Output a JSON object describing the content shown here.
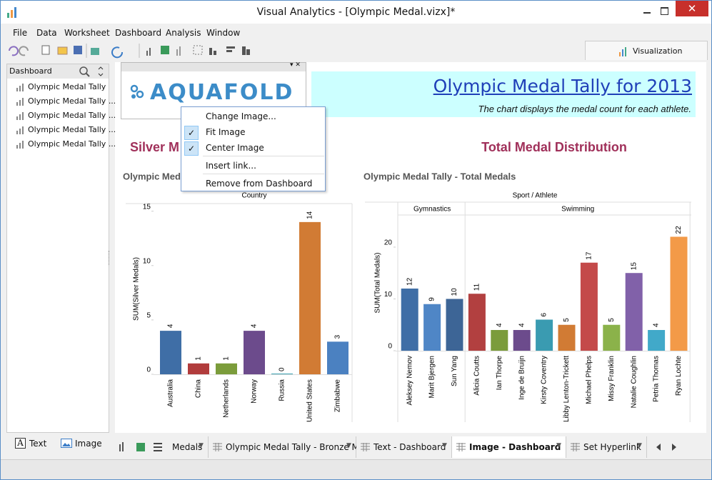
{
  "window": {
    "title": "Visual Analytics - [Olympic Medal.vizx]*"
  },
  "menu": [
    "File",
    "Data",
    "Worksheet",
    "Dashboard",
    "Analysis",
    "Window"
  ],
  "toolbar": {
    "tab": "Visualization"
  },
  "sidebar": {
    "title": "Dashboard",
    "items": [
      "Olympic Medal Tally",
      "Olympic Medal Tally ...",
      "Olympic Medal Tally ...",
      "Olympic Medal Tally ...",
      "Olympic Medal Tally ..."
    ],
    "tools": [
      "Text",
      "Image"
    ]
  },
  "logo": "AQUAFOLD",
  "header": {
    "title": "Olympic Medal Tally for 2013",
    "subtitle": "The chart displays the medal count for each athlete."
  },
  "context_menu": [
    {
      "label": "Change Image..."
    },
    {
      "label": "Fit Image",
      "checked": true
    },
    {
      "label": "Center Image",
      "checked": true
    },
    {
      "label": "Insert link..."
    },
    {
      "label": "Remove from Dashboard"
    }
  ],
  "chart_data": [
    {
      "type": "bar",
      "title": "Silver M",
      "subtitle": "Olympic Medal",
      "x_header": "Country",
      "y_label": "SUM(Silver Medals)",
      "categories": [
        "Australia",
        "China",
        "Netherlands",
        "Norway",
        "Russia",
        "United States",
        "Zimbabwe"
      ],
      "values": [
        4,
        1,
        1,
        4,
        0,
        14,
        3
      ],
      "colors": [
        "#3f6ea6",
        "#b13c3c",
        "#7b9c3b",
        "#6c4b8c",
        "#3aa1b1",
        "#d17b34",
        "#4b81c1"
      ],
      "ylim": [
        0,
        15.7
      ],
      "yticks": [
        0,
        5,
        10,
        15
      ]
    },
    {
      "type": "bar",
      "title": "Total Medal Distribution",
      "subtitle": "Olympic Medal Tally - Total Medals",
      "x_header": "Sport / Athlete",
      "y_label": "SUM(Total Medals)",
      "groups": [
        {
          "name": "Gymnastics",
          "categories": [
            "Aleksey Nemov",
            "Marit Bjergen",
            "Sun Yang"
          ],
          "values": [
            12,
            9,
            10
          ],
          "colors": [
            "#3f6ea6",
            "#4f86c6",
            "#3d6596"
          ]
        },
        {
          "name": "Swimming",
          "categories": [
            "Alicia Coutts",
            "Ian Thorpe",
            "Inge de Bruijn",
            "Kirsty Coventry",
            "Libby Lenton-Trickett",
            "Michael Phelps",
            "Missy Franklin",
            "Natalie Coughlin",
            "Petria Thomas",
            "Ryan Lochte"
          ],
          "values": [
            11,
            4,
            4,
            6,
            5,
            17,
            5,
            15,
            4,
            22
          ],
          "colors": [
            "#b24040",
            "#7b9c3b",
            "#6c4b8c",
            "#3a9bb1",
            "#d17b34",
            "#c44a4a",
            "#8bb24a",
            "#8161a9",
            "#41a9c9",
            "#f39a48"
          ]
        }
      ],
      "ylim": [
        0,
        26.2
      ],
      "yticks": [
        0,
        10,
        20
      ]
    }
  ],
  "tabs": [
    {
      "label": "Medals"
    },
    {
      "label": "Olympic Medal Tally - Bronze Medals"
    },
    {
      "label": "Text - Dashboard"
    },
    {
      "label": "Image - Dashboard",
      "active": true
    },
    {
      "label": "Set Hyperlink"
    }
  ]
}
